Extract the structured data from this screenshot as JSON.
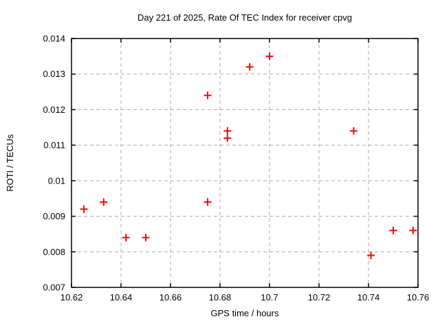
{
  "figure": {
    "background_color": "#ffffff",
    "border_color": "#000000",
    "grid_color": "#a8a8a8",
    "text_color": "#000000"
  },
  "chart_data": {
    "type": "scatter",
    "title": "Day 221 of 2025, Rate Of TEC Index for receiver cpvg",
    "xlabel": "GPS time / hours",
    "ylabel": "ROTI / TECUs",
    "xlim": [
      10.62,
      10.76
    ],
    "ylim": [
      0.007,
      0.014
    ],
    "grid": true,
    "legend": "none",
    "xticks": [
      {
        "v": 10.62,
        "label": "10.62"
      },
      {
        "v": 10.64,
        "label": "10.64"
      },
      {
        "v": 10.66,
        "label": "10.66"
      },
      {
        "v": 10.68,
        "label": "10.68"
      },
      {
        "v": 10.7,
        "label": "10.7"
      },
      {
        "v": 10.72,
        "label": "10.72"
      },
      {
        "v": 10.74,
        "label": "10.74"
      },
      {
        "v": 10.76,
        "label": "10.76"
      }
    ],
    "yticks": [
      {
        "v": 0.007,
        "label": "0.007"
      },
      {
        "v": 0.008,
        "label": "0.008"
      },
      {
        "v": 0.009,
        "label": "0.009"
      },
      {
        "v": 0.01,
        "label": "0.01"
      },
      {
        "v": 0.011,
        "label": "0.011"
      },
      {
        "v": 0.012,
        "label": "0.012"
      },
      {
        "v": 0.013,
        "label": "0.013"
      },
      {
        "v": 0.014,
        "label": "0.014"
      }
    ],
    "series": [
      {
        "name": "ROTI",
        "marker": "plus",
        "color": "#ff0000",
        "points": [
          [
            10.625,
            0.0092
          ],
          [
            10.633,
            0.0094
          ],
          [
            10.642,
            0.0084
          ],
          [
            10.65,
            0.0084
          ],
          [
            10.675,
            0.0094
          ],
          [
            10.675,
            0.0124
          ],
          [
            10.683,
            0.0112
          ],
          [
            10.683,
            0.0114
          ],
          [
            10.692,
            0.0132
          ],
          [
            10.7,
            0.0135
          ],
          [
            10.734,
            0.0114
          ],
          [
            10.741,
            0.0079
          ],
          [
            10.75,
            0.0086
          ],
          [
            10.758,
            0.0086
          ]
        ]
      }
    ]
  }
}
